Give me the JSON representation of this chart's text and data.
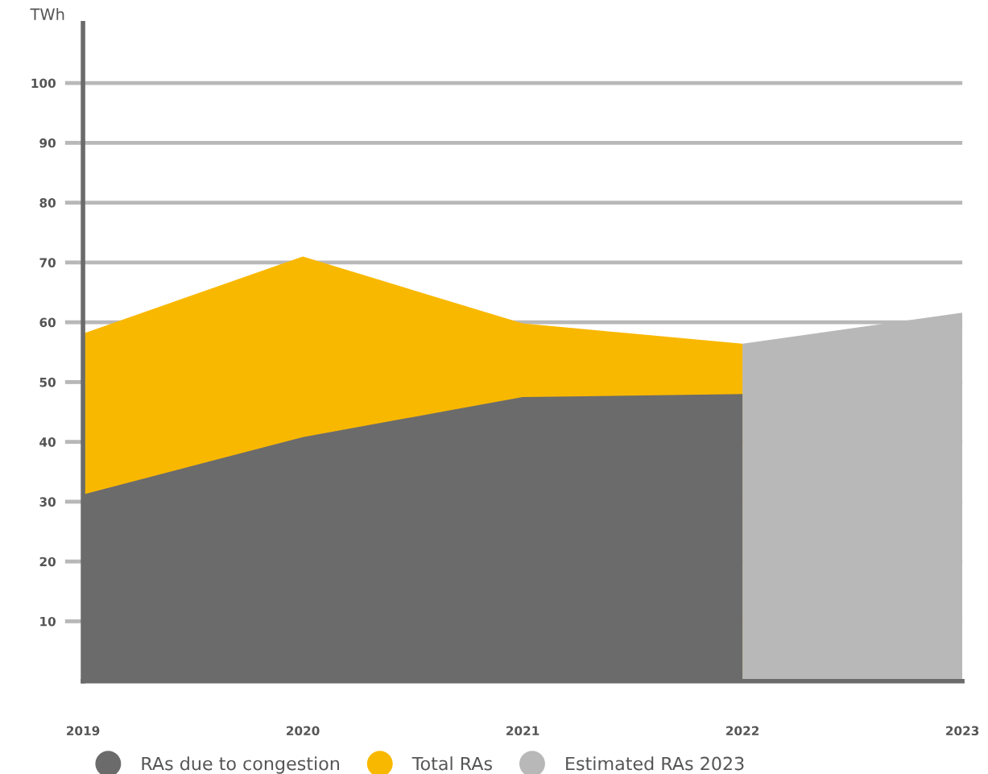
{
  "chart_data": {
    "type": "area",
    "ylabel": "TWh",
    "x": [
      2019,
      2020,
      2021,
      2022
    ],
    "series": [
      {
        "name": "RAs due to congestion",
        "color": "#6b6b6b",
        "values": [
          31.2,
          40.8,
          47.5,
          48.0
        ]
      },
      {
        "name": "Total RAs",
        "color": "#f9b800",
        "values": [
          58.1,
          71.0,
          59.8,
          56.4
        ]
      },
      {
        "name": "Estimated RAs 2023",
        "color": "#b8b8b8",
        "x": [
          2022,
          2023
        ],
        "values": [
          56.4,
          61.6
        ]
      }
    ],
    "xlim": [
      2019,
      2023
    ],
    "xticks": [
      2019,
      2020,
      2021,
      2022,
      2023
    ],
    "ylim": [
      0,
      110
    ],
    "yticks": [
      10,
      20,
      30,
      40,
      50,
      60,
      70,
      80,
      90,
      100
    ],
    "grid": "y",
    "legend": "bottom"
  }
}
